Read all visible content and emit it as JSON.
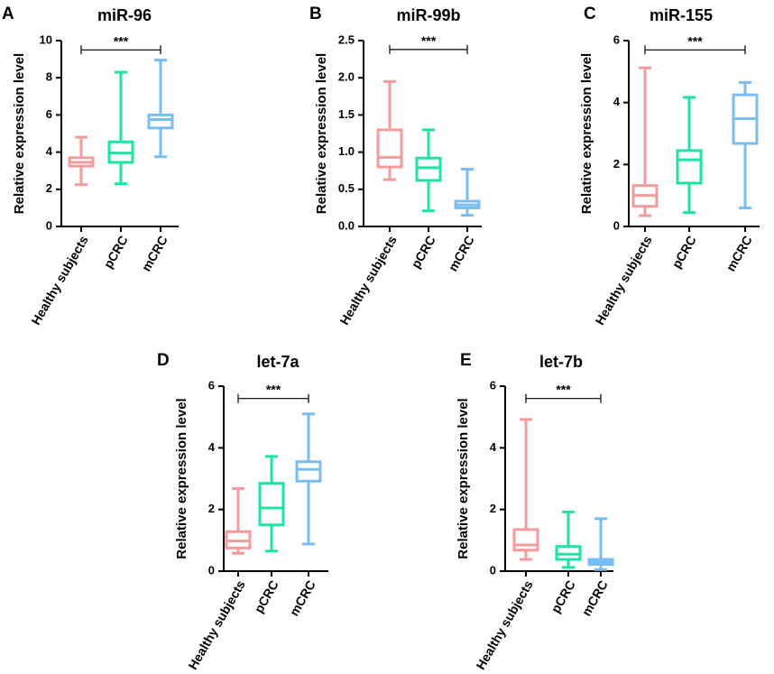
{
  "chart_data": [
    {
      "panel": "A",
      "title": "miR-96",
      "type": "box",
      "ylabel": "Relative expression level",
      "ylim": [
        0,
        10
      ],
      "yticks": [
        0,
        2,
        4,
        6,
        8,
        10
      ],
      "categories": [
        "Healthy subjects",
        "pCRC",
        "mCRC"
      ],
      "boxes": [
        {
          "min": 2.25,
          "q1": 3.25,
          "median": 3.45,
          "q3": 3.7,
          "max": 4.8
        },
        {
          "min": 2.3,
          "q1": 3.45,
          "median": 3.95,
          "q3": 4.55,
          "max": 8.3
        },
        {
          "min": 3.75,
          "q1": 5.3,
          "median": 5.75,
          "q3": 6.0,
          "max": 8.95
        }
      ],
      "significance": {
        "label": "***",
        "from": 0,
        "to": 2,
        "y": 9.5
      }
    },
    {
      "panel": "B",
      "title": "miR-99b",
      "type": "box",
      "ylabel": "Relative expression level",
      "ylim": [
        0,
        2.5
      ],
      "yticks": [
        0.0,
        0.5,
        1.0,
        1.5,
        2.0,
        2.5
      ],
      "categories": [
        "Healthy subjects",
        "pCRC",
        "mCRC"
      ],
      "boxes": [
        {
          "min": 0.63,
          "q1": 0.8,
          "median": 0.93,
          "q3": 1.3,
          "max": 1.95
        },
        {
          "min": 0.21,
          "q1": 0.62,
          "median": 0.79,
          "q3": 0.92,
          "max": 1.3
        },
        {
          "min": 0.15,
          "q1": 0.25,
          "median": 0.29,
          "q3": 0.34,
          "max": 0.77
        }
      ],
      "significance": {
        "label": "***",
        "from": 0,
        "to": 2,
        "y": 2.38
      }
    },
    {
      "panel": "C",
      "title": "miR-155",
      "type": "box",
      "ylabel": "Relative expression level",
      "ylim": [
        0,
        6
      ],
      "yticks": [
        0,
        2,
        4,
        6
      ],
      "categories": [
        "Healthy subjects",
        "pCRC",
        "mCRC"
      ],
      "boxes": [
        {
          "min": 0.35,
          "q1": 0.65,
          "median": 1.0,
          "q3": 1.32,
          "max": 5.12
        },
        {
          "min": 0.45,
          "q1": 1.4,
          "median": 2.15,
          "q3": 2.45,
          "max": 4.17
        },
        {
          "min": 0.6,
          "q1": 2.68,
          "median": 3.48,
          "q3": 4.25,
          "max": 4.65
        }
      ],
      "significance": {
        "label": "***",
        "from": 0,
        "to": 2,
        "y": 5.7
      }
    },
    {
      "panel": "D",
      "title": "let-7a",
      "type": "box",
      "ylabel": "Relative expression level",
      "ylim": [
        0,
        6
      ],
      "yticks": [
        0,
        2,
        4,
        6
      ],
      "categories": [
        "Healthy subjects",
        "pCRC",
        "mCRC"
      ],
      "boxes": [
        {
          "min": 0.58,
          "q1": 0.75,
          "median": 0.98,
          "q3": 1.28,
          "max": 2.68
        },
        {
          "min": 0.65,
          "q1": 1.5,
          "median": 2.05,
          "q3": 2.85,
          "max": 3.72
        },
        {
          "min": 0.88,
          "q1": 2.92,
          "median": 3.3,
          "q3": 3.55,
          "max": 5.1
        }
      ],
      "significance": {
        "label": "***",
        "from": 0,
        "to": 2,
        "y": 5.6
      }
    },
    {
      "panel": "E",
      "title": "let-7b",
      "type": "box",
      "ylabel": "Relative expression level",
      "ylim": [
        0,
        6
      ],
      "yticks": [
        0,
        2,
        4,
        6
      ],
      "categories": [
        "Healthy subjects",
        "pCRC",
        "mCRC"
      ],
      "boxes": [
        {
          "min": 0.38,
          "q1": 0.68,
          "median": 0.85,
          "q3": 1.35,
          "max": 4.92
        },
        {
          "min": 0.12,
          "q1": 0.38,
          "median": 0.55,
          "q3": 0.8,
          "max": 1.92
        },
        {
          "min": 0.05,
          "q1": 0.22,
          "median": 0.3,
          "q3": 0.38,
          "max": 1.7
        }
      ],
      "significance": {
        "label": "***",
        "from": 0,
        "to": 2,
        "y": 5.6
      }
    }
  ],
  "colors": [
    "#f59b9b",
    "#1ee3a6",
    "#79bdf1"
  ],
  "axis_color": "#000000"
}
